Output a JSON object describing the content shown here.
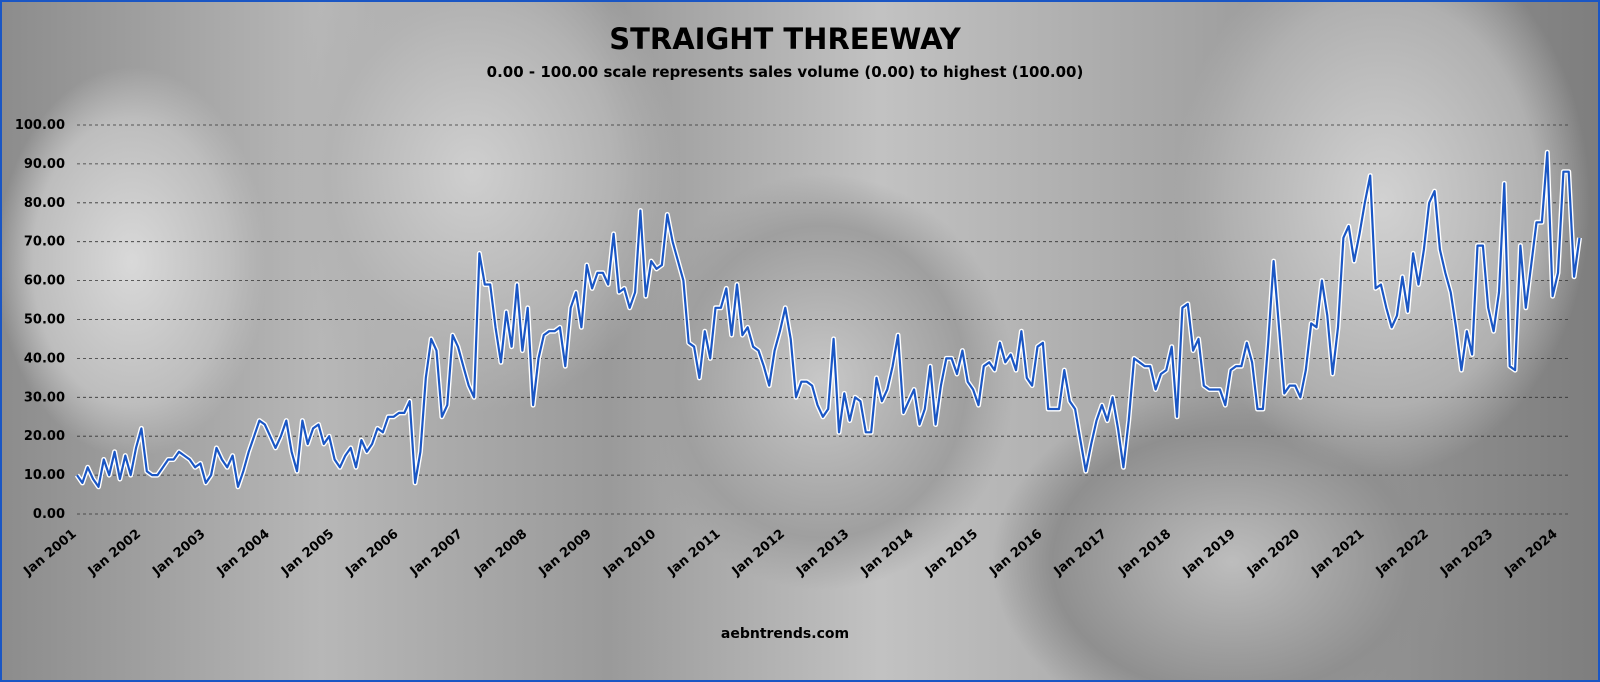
{
  "chart_data": {
    "type": "line",
    "title": "STRAIGHT THREEWAY",
    "subtitle": "0.00 - 100.00 scale represents sales volume (0.00) to highest (100.00)",
    "xlabel": "",
    "ylabel": "",
    "ylim": [
      0,
      100
    ],
    "y_ticks": [
      "0.00",
      "10.00",
      "20.00",
      "30.00",
      "40.00",
      "50.00",
      "60.00",
      "70.00",
      "80.00",
      "90.00",
      "100.00"
    ],
    "x_ticks": [
      "Jan 2001",
      "Jan 2002",
      "Jan 2003",
      "Jan 2004",
      "Jan 2005",
      "Jan 2006",
      "Jan 2007",
      "Jan 2008",
      "Jan 2009",
      "Jan 2010",
      "Jan 2011",
      "Jan 2012",
      "Jan 2013",
      "Jan 2014",
      "Jan 2015",
      "Jan 2016",
      "Jan 2017",
      "Jan 2018",
      "Jan 2019",
      "Jan 2020",
      "Jan 2021",
      "Jan 2022",
      "Jan 2023",
      "Jan 2024"
    ],
    "grid": true,
    "line_color": "#1a56c4",
    "x_start": "2001-01",
    "series": [
      {
        "values": [
          10,
          8,
          12,
          9,
          7,
          14,
          10,
          16,
          9,
          15,
          10,
          17,
          22,
          11,
          10,
          10,
          12,
          14,
          14,
          16,
          15,
          14,
          12,
          13,
          8,
          10,
          17,
          14,
          12,
          15,
          7,
          11,
          16,
          20,
          24,
          23,
          20,
          17,
          20,
          24,
          16,
          11,
          24,
          18,
          22,
          23,
          18,
          20,
          14,
          12,
          15,
          17,
          12,
          19,
          16,
          18,
          22,
          21,
          25,
          25,
          26,
          26,
          29,
          8,
          16,
          35,
          45,
          42,
          25,
          28,
          46,
          43,
          38,
          33,
          30,
          67,
          59,
          59,
          48,
          39,
          52,
          43,
          59,
          42,
          53,
          28,
          40,
          46,
          47,
          47,
          48,
          38,
          53,
          57,
          48,
          64,
          58,
          62,
          62,
          59,
          72,
          57,
          58,
          53,
          57,
          78,
          56,
          65,
          63,
          64,
          77,
          70,
          65,
          60,
          44,
          43,
          35,
          47,
          40,
          53,
          53,
          58,
          46,
          59,
          46,
          48,
          43,
          42,
          38,
          33,
          42,
          47,
          53,
          45,
          30,
          34,
          34,
          33,
          28,
          25,
          27,
          45,
          21,
          31,
          24,
          30,
          29,
          21,
          21,
          35,
          29,
          32,
          38,
          46,
          26,
          29,
          32,
          23,
          27,
          38,
          23,
          33,
          40,
          40,
          36,
          42,
          34,
          32,
          28,
          38,
          39,
          37,
          44,
          39,
          41,
          37,
          47,
          35,
          33,
          43,
          44,
          27,
          27,
          27,
          37,
          29,
          27,
          19,
          11,
          18,
          24,
          28,
          24,
          30,
          22,
          12,
          24,
          40,
          39,
          38,
          38,
          32,
          36,
          37,
          43,
          25,
          53,
          54,
          42,
          45,
          33,
          32,
          32,
          32,
          28,
          37,
          38,
          38,
          44,
          39,
          27,
          27,
          44,
          65,
          48,
          31,
          33,
          33,
          30,
          37,
          49,
          48,
          60,
          51,
          36,
          48,
          71,
          74,
          65,
          72,
          80,
          87,
          58,
          59,
          53,
          48,
          51,
          61,
          52,
          67,
          59,
          68,
          80,
          83,
          68,
          62,
          57,
          48,
          37,
          47,
          41,
          69,
          69,
          53,
          47,
          57,
          85,
          38,
          37,
          69,
          53,
          64,
          75,
          75,
          93,
          56,
          62,
          88,
          88,
          61,
          71
        ]
      }
    ]
  },
  "footer": {
    "site": "aebntrends.com"
  }
}
